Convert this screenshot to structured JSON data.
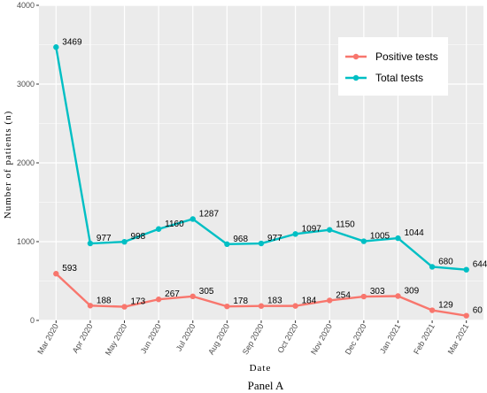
{
  "chart_data": {
    "type": "line",
    "caption": "Panel A",
    "xlabel": "Date",
    "ylabel": "Number of patients (n)",
    "ylim": [
      0,
      4000
    ],
    "yticks": [
      0,
      1000,
      2000,
      3000,
      4000
    ],
    "grid": true,
    "legend_position": "top-right",
    "categories": [
      "Mar 2020",
      "Apr 2020",
      "May 2020",
      "Jun 2020",
      "Jul 2020",
      "Aug 2020",
      "Sep 2020",
      "Oct 2020",
      "Nov 2020",
      "Dec 2020",
      "Jan 2021",
      "Feb 2021",
      "Mar 2021"
    ],
    "series": [
      {
        "name": "Positive tests",
        "color": "#F8766D",
        "values": [
          593,
          188,
          173,
          267,
          305,
          178,
          183,
          184,
          254,
          303,
          309,
          129,
          60
        ]
      },
      {
        "name": "Total tests",
        "color": "#00BFC4",
        "values": [
          3469,
          977,
          998,
          1160,
          1287,
          968,
          977,
          1097,
          1150,
          1005,
          1044,
          680,
          644
        ]
      }
    ],
    "panel_background": "#EBEBEB",
    "legend_background": "#FFFFFF"
  }
}
